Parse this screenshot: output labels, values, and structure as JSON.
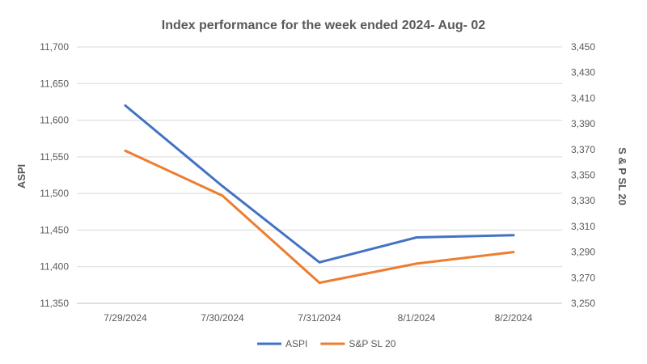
{
  "chart_data": {
    "type": "line",
    "title": "Index performance for the week ended 2024- Aug- 02",
    "categories": [
      "7/29/2024",
      "7/30/2024",
      "7/31/2024",
      "8/1/2024",
      "8/2/2024"
    ],
    "ylabel": "ASPI",
    "y2label": "S & P SL 20",
    "ylim": [
      11350,
      11700
    ],
    "y2lim": [
      3250,
      3450
    ],
    "y_ticks": [
      "11,350",
      "11,400",
      "11,450",
      "11,500",
      "11,550",
      "11,600",
      "11,650",
      "11,700"
    ],
    "y2_ticks": [
      "3,250",
      "3,270",
      "3,290",
      "3,310",
      "3,330",
      "3,350",
      "3,370",
      "3,390",
      "3,410",
      "3,430",
      "3,450"
    ],
    "grid": true,
    "legend_position": "bottom",
    "series": [
      {
        "name": "ASPI",
        "axis": "left",
        "color": "#4472C4",
        "values": [
          11620,
          11510,
          11406,
          11440,
          11443
        ]
      },
      {
        "name": "S&P SL 20",
        "axis": "right",
        "color": "#ED7D31",
        "values": [
          3369,
          3334,
          3266,
          3281,
          3290
        ]
      }
    ]
  }
}
